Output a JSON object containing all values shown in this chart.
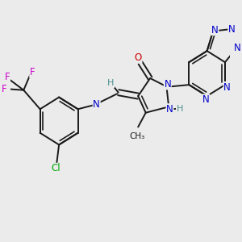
{
  "background_color": "#ebebeb",
  "bond_color": "#1a1a1a",
  "bond_width": 1.4,
  "figsize": [
    3.0,
    3.0
  ],
  "dpi": 100,
  "xlim": [
    0,
    10
  ],
  "ylim": [
    0,
    10
  ],
  "colors": {
    "F": "#cc00cc",
    "Cl": "#00aa00",
    "N": "#0000cc",
    "O": "#cc0000",
    "H": "#4a9090",
    "C": "#1a1a1a"
  }
}
